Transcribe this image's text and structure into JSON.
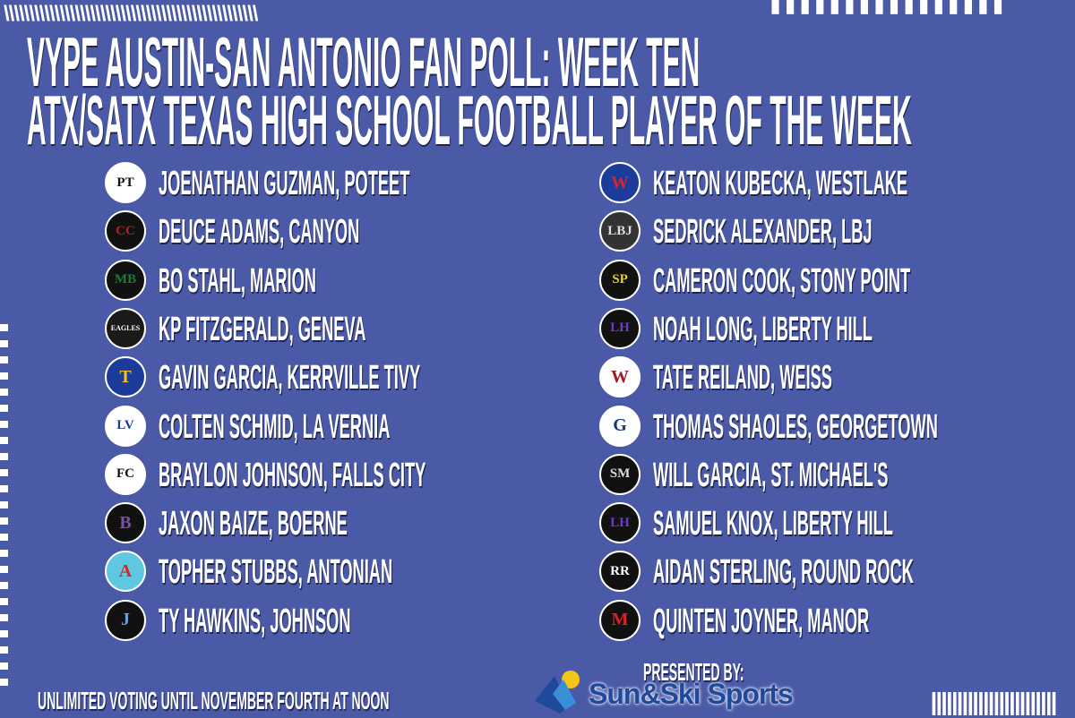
{
  "title": {
    "line1": "VYPE AUSTIN-SAN ANTONIO FAN POLL:  WEEK TEN",
    "line2": "ATX/SATX TEXAS HIGH SCHOOL FOOTBALL PLAYER OF THE WEEK"
  },
  "players_left": [
    {
      "name": "JOENATHAN GUZMAN, POTEET",
      "logo": "PT",
      "bg": "#ffffff",
      "fg": "#111111"
    },
    {
      "name": "DEUCE ADAMS, CANYON",
      "logo": "CC",
      "bg": "#111111",
      "fg": "#b01e2a"
    },
    {
      "name": "BO STAHL, MARION",
      "logo": "MB",
      "bg": "#111111",
      "fg": "#1a7a3a"
    },
    {
      "name": "KP FITZGERALD, GENEVA",
      "logo": "EAGLES",
      "bg": "#1a1a1a",
      "fg": "#ffffff"
    },
    {
      "name": "GAVIN GARCIA, KERRVILLE TIVY",
      "logo": "T",
      "bg": "#1c3c9c",
      "fg": "#f2c41a"
    },
    {
      "name": "COLTEN SCHMID, LA VERNIA",
      "logo": "LV",
      "bg": "#ffffff",
      "fg": "#1c3c9c"
    },
    {
      "name": "BRAYLON JOHNSON, FALLS CITY",
      "logo": "FC",
      "bg": "#ffffff",
      "fg": "#111111"
    },
    {
      "name": "JAXON BAIZE, BOERNE",
      "logo": "B",
      "bg": "#111111",
      "fg": "#7a4fb0"
    },
    {
      "name": "TOPHER STUBBS, ANTONIAN",
      "logo": "A",
      "bg": "#5fc8e0",
      "fg": "#d8232a"
    },
    {
      "name": "TY HAWKINS, JOHNSON",
      "logo": "J",
      "bg": "#111111",
      "fg": "#6aa0d8"
    }
  ],
  "players_right": [
    {
      "name": "KEATON KUBECKA, WESTLAKE",
      "logo": "W",
      "bg": "#1c3c9c",
      "fg": "#d8232a"
    },
    {
      "name": "SEDRICK ALEXANDER, LBJ",
      "logo": "LBJ",
      "bg": "#333333",
      "fg": "#dddddd"
    },
    {
      "name": "CAMERON COOK, STONY POINT",
      "logo": "SP",
      "bg": "#111111",
      "fg": "#e8d21a"
    },
    {
      "name": "NOAH LONG, LIBERTY HILL",
      "logo": "LH",
      "bg": "#111111",
      "fg": "#6a3ec0"
    },
    {
      "name": "TATE REILAND, WEISS",
      "logo": "W",
      "bg": "#ffffff",
      "fg": "#9c1b2a"
    },
    {
      "name": "THOMAS SHAOLES, GEORGETOWN",
      "logo": "G",
      "bg": "#ffffff",
      "fg": "#1a3a7a"
    },
    {
      "name": "WILL GARCIA, ST. MICHAEL'S",
      "logo": "SM",
      "bg": "#111111",
      "fg": "#dddddd"
    },
    {
      "name": "SAMUEL KNOX, LIBERTY HILL",
      "logo": "LH",
      "bg": "#111111",
      "fg": "#6a3ec0"
    },
    {
      "name": "AIDAN STERLING, ROUND ROCK",
      "logo": "RR",
      "bg": "#111111",
      "fg": "#ffffff"
    },
    {
      "name": "QUINTEN JOYNER, MANOR",
      "logo": "M",
      "bg": "#111111",
      "fg": "#d8232a"
    }
  ],
  "footer": {
    "voting": "UNLIMITED VOTING UNTIL NOVEMBER FOURTH AT NOON",
    "presented_by": "PRESENTED BY:",
    "sponsor": "Sun&Ski Sports"
  },
  "colors": {
    "background": "#4b5aa7",
    "text": "#ffffff",
    "sponsor_blue": "#1f4a9c"
  }
}
